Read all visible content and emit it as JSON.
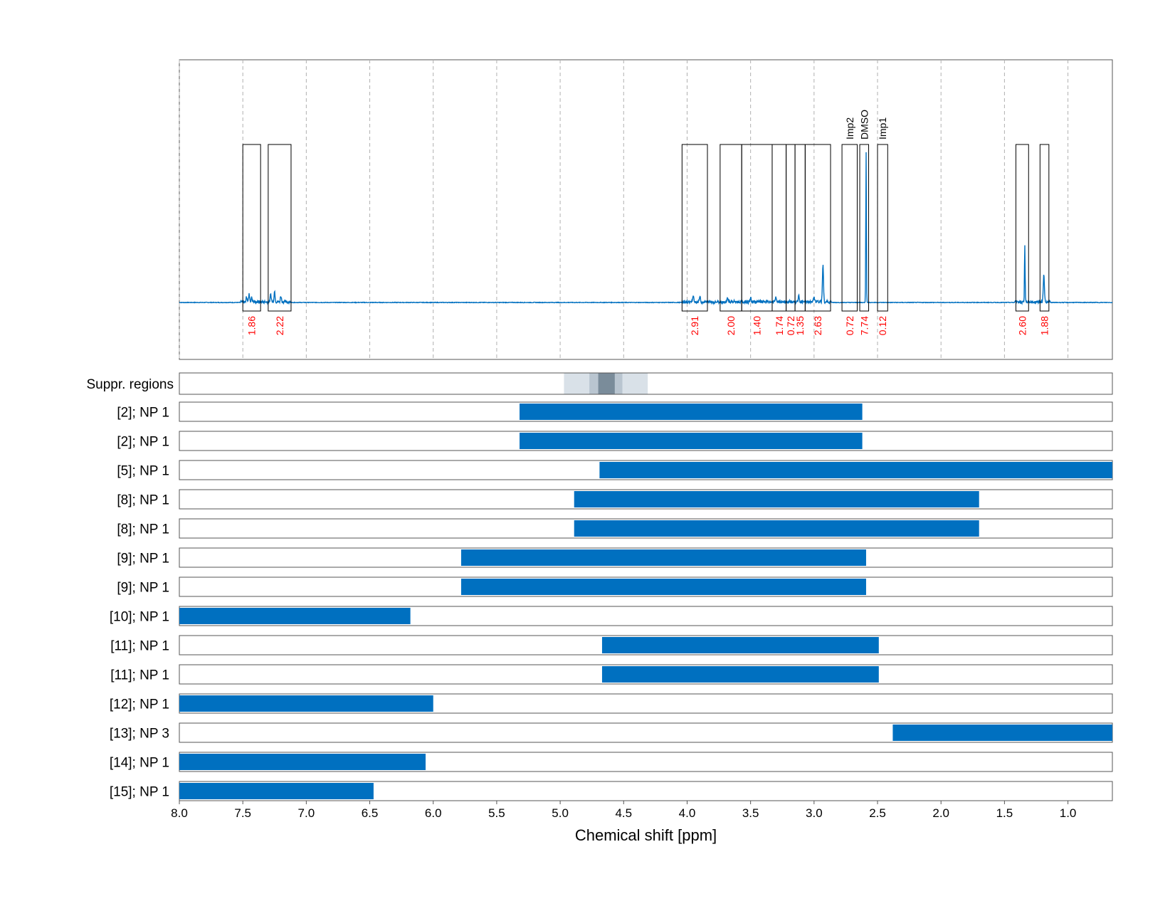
{
  "chart_data": {
    "type": "nmr-spectrum-with-range-bars",
    "xlabel": "Chemical shift [ppm]",
    "x_axis_reversed": true,
    "xlim": [
      8.0,
      0.65
    ],
    "x_ticks": [
      8.0,
      7.5,
      7.0,
      6.5,
      6.0,
      5.5,
      5.0,
      4.5,
      4.0,
      3.5,
      3.0,
      2.5,
      2.0,
      1.5,
      1.0
    ],
    "colors": {
      "spectrum": "#0070C0",
      "integral_value": "#FF0000",
      "bar": "#0070C0",
      "suppr_light": "#D9E1E8",
      "suppr_mid": "#B9C5D0",
      "suppr_dark": "#7A8C9A"
    },
    "spectrum": {
      "grid": "dashed-vertical",
      "baseline": 0.0,
      "peaks": [
        {
          "ppm": 7.45,
          "height": 0.05
        },
        {
          "ppm": 7.47,
          "height": 0.035
        },
        {
          "ppm": 7.43,
          "height": 0.03
        },
        {
          "ppm": 7.25,
          "height": 0.07
        },
        {
          "ppm": 7.28,
          "height": 0.05
        },
        {
          "ppm": 7.2,
          "height": 0.04
        },
        {
          "ppm": 3.95,
          "height": 0.04
        },
        {
          "ppm": 3.9,
          "height": 0.035
        },
        {
          "ppm": 3.68,
          "height": 0.03
        },
        {
          "ppm": 3.5,
          "height": 0.025
        },
        {
          "ppm": 3.3,
          "height": 0.03
        },
        {
          "ppm": 3.12,
          "height": 0.04
        },
        {
          "ppm": 2.93,
          "height": 0.25
        },
        {
          "ppm": 3.0,
          "height": 0.03
        },
        {
          "ppm": 2.59,
          "height": 1.0
        },
        {
          "ppm": 1.34,
          "height": 0.38
        },
        {
          "ppm": 1.19,
          "height": 0.18
        }
      ],
      "integral_regions": [
        {
          "from": 7.5,
          "to": 7.36,
          "value": "1.86"
        },
        {
          "from": 7.3,
          "to": 7.12,
          "value": "2.22"
        },
        {
          "from": 4.04,
          "to": 3.84,
          "value": "2.91"
        },
        {
          "from": 3.74,
          "to": 3.57,
          "value": "2.00"
        },
        {
          "from": 3.57,
          "to": 3.33,
          "value": "1.40"
        },
        {
          "from": 3.33,
          "to": 3.22,
          "value": "1.74"
        },
        {
          "from": 3.22,
          "to": 3.15,
          "value": "0.72"
        },
        {
          "from": 3.15,
          "to": 3.07,
          "value": "1.35"
        },
        {
          "from": 3.07,
          "to": 2.87,
          "value": "2.63"
        },
        {
          "from": 2.78,
          "to": 2.66,
          "value": "0.72",
          "annotation": "Imp2"
        },
        {
          "from": 2.64,
          "to": 2.57,
          "value": "7.74",
          "annotation": "DMSO"
        },
        {
          "from": 2.5,
          "to": 2.42,
          "value": "0.12",
          "annotation": "Imp1"
        },
        {
          "from": 1.41,
          "to": 1.31,
          "value": "2.60"
        },
        {
          "from": 1.22,
          "to": 1.15,
          "value": "1.88"
        }
      ]
    },
    "suppression": {
      "label": "Suppr. regions",
      "layers": [
        {
          "from": 4.97,
          "to": 4.31,
          "level": "light"
        },
        {
          "from": 4.77,
          "to": 4.51,
          "level": "mid"
        },
        {
          "from": 4.7,
          "to": 4.57,
          "level": "dark"
        }
      ]
    },
    "range_rows": [
      {
        "label": "[2]; NP 1",
        "from": 5.32,
        "to": 2.62
      },
      {
        "label": "[2]; NP 1",
        "from": 5.32,
        "to": 2.62
      },
      {
        "label": "[5]; NP 1",
        "from": 4.69,
        "to": 0.65
      },
      {
        "label": "[8]; NP 1",
        "from": 4.89,
        "to": 1.7
      },
      {
        "label": "[8]; NP 1",
        "from": 4.89,
        "to": 1.7
      },
      {
        "label": "[9]; NP 1",
        "from": 5.78,
        "to": 2.59
      },
      {
        "label": "[9]; NP 1",
        "from": 5.78,
        "to": 2.59
      },
      {
        "label": "[10]; NP 1",
        "from": 8.0,
        "to": 6.18
      },
      {
        "label": "[11]; NP 1",
        "from": 4.67,
        "to": 2.49
      },
      {
        "label": "[11]; NP 1",
        "from": 4.67,
        "to": 2.49
      },
      {
        "label": "[12]; NP 1",
        "from": 8.0,
        "to": 6.0
      },
      {
        "label": "[13]; NP 3",
        "from": 2.38,
        "to": 0.65
      },
      {
        "label": "[14]; NP 1",
        "from": 8.0,
        "to": 6.06
      },
      {
        "label": "[15]; NP 1",
        "from": 8.0,
        "to": 6.47
      }
    ]
  }
}
